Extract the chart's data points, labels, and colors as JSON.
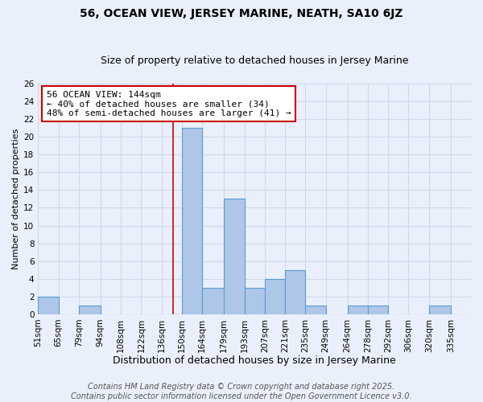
{
  "title": "56, OCEAN VIEW, JERSEY MARINE, NEATH, SA10 6JZ",
  "subtitle": "Size of property relative to detached houses in Jersey Marine",
  "xlabel": "Distribution of detached houses by size in Jersey Marine",
  "ylabel": "Number of detached properties",
  "footer_line1": "Contains HM Land Registry data © Crown copyright and database right 2025.",
  "footer_line2": "Contains public sector information licensed under the Open Government Licence v3.0.",
  "annotation_line1": "56 OCEAN VIEW: 144sqm",
  "annotation_line2": "← 40% of detached houses are smaller (34)",
  "annotation_line3": "48% of semi-detached houses are larger (41) →",
  "property_size": 144,
  "bin_labels": [
    "51sqm",
    "65sqm",
    "79sqm",
    "94sqm",
    "108sqm",
    "122sqm",
    "136sqm",
    "150sqm",
    "164sqm",
    "179sqm",
    "193sqm",
    "207sqm",
    "221sqm",
    "235sqm",
    "249sqm",
    "264sqm",
    "278sqm",
    "292sqm",
    "306sqm",
    "320sqm",
    "335sqm"
  ],
  "bin_edges": [
    51,
    65,
    79,
    94,
    108,
    122,
    136,
    150,
    164,
    179,
    193,
    207,
    221,
    235,
    249,
    264,
    278,
    292,
    306,
    320,
    335,
    349
  ],
  "counts": [
    2,
    0,
    1,
    0,
    0,
    0,
    0,
    21,
    3,
    13,
    3,
    4,
    5,
    1,
    0,
    1,
    1,
    0,
    0,
    1,
    0
  ],
  "bar_color": "#aec6e8",
  "bar_edge_color": "#5b9bd5",
  "grid_color": "#d0d8e8",
  "background_color": "#eaf0fb",
  "annotation_box_color": "#ffffff",
  "annotation_box_edge": "#cc0000",
  "vline_color": "#cc0000",
  "title_fontsize": 10,
  "subtitle_fontsize": 9,
  "xlabel_fontsize": 9,
  "ylabel_fontsize": 8,
  "tick_fontsize": 7.5,
  "annotation_fontsize": 8,
  "footer_fontsize": 7,
  "ylim": [
    0,
    26
  ],
  "yticks": [
    0,
    2,
    4,
    6,
    8,
    10,
    12,
    14,
    16,
    18,
    20,
    22,
    24,
    26
  ]
}
